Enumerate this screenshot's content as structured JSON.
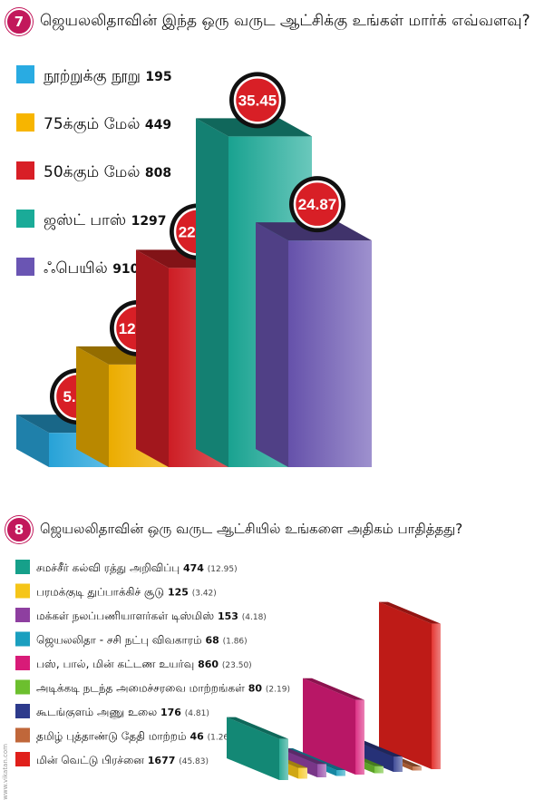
{
  "q1": {
    "number": "7",
    "question": "ஜெயலலிதாவின் இந்த ஒரு வருட ஆட்சிக்கு உங்கள் மார்க் எவ்வளவு?"
  },
  "q2": {
    "number": "8",
    "question": "ஜெயலலிதாவின் ஒரு வருட ஆட்சியில் உங்களை அதிகம் பாதித்தது?"
  },
  "watermark": "www.vikatan.com",
  "chart_data": [
    {
      "type": "bar",
      "title": "ஜெயலலிதாவின் இந்த ஒரு வருட ஆட்சிக்கு உங்கள் மார்க் எவ்வளவு?",
      "legend_position": "top-left",
      "grid": false,
      "series": [
        {
          "name": "நூற்றுக்கு நூறு",
          "count": "195",
          "value": 5.33,
          "label": "5.33",
          "color": "#29abe2"
        },
        {
          "name": "75க்கும் மேல்",
          "count": "449",
          "value": 12.27,
          "label": "12.27",
          "color": "#f7b500"
        },
        {
          "name": "50க்கும் மேல்",
          "count": "808",
          "value": 22.08,
          "label": "22.08",
          "color": "#d81f26"
        },
        {
          "name": "ஜஸ்ட் பாஸ்",
          "count": "1297",
          "value": 35.45,
          "label": "35.45",
          "color": "#1aab98"
        },
        {
          "name": "ஃபெயில்",
          "count": "910",
          "value": 24.87,
          "label": "24.87",
          "color": "#6a55b3"
        }
      ]
    },
    {
      "type": "bar",
      "title": "ஜெயலலிதாவின் ஒரு வருட ஆட்சியில் உங்களை அதிகம் பாதித்தது?",
      "legend_position": "left",
      "grid": false,
      "series": [
        {
          "name": "சமச்சீர் கல்வி ரத்து அறிவிப்பு",
          "count": "474",
          "pct": "(12.95)",
          "value": 12.95,
          "color": "#16a08a"
        },
        {
          "name": "பரமக்குடி துப்பாக்கிச் சூடு",
          "count": "125",
          "pct": "(3.42)",
          "value": 3.42,
          "color": "#f5c518"
        },
        {
          "name": "மக்கள் நலப்பணியாளர்கள் டிஸ்மிஸ்",
          "count": "153",
          "pct": "(4.18)",
          "value": 4.18,
          "color": "#8e3fa0"
        },
        {
          "name": "ஜெயலலிதா - சசி நட்பு விவகாரம்",
          "count": "68",
          "pct": "(1.86)",
          "value": 1.86,
          "color": "#1a9fbf"
        },
        {
          "name": "பஸ், பால், மின் கட்டண உயர்வு",
          "count": "860",
          "pct": "(23.50)",
          "value": 23.5,
          "color": "#d81b78"
        },
        {
          "name": "அடிக்கடி நடந்த அமைச்சரவை மாற்றங்கள்",
          "count": "80",
          "pct": "(2.19)",
          "value": 2.19,
          "color": "#6cbf2e"
        },
        {
          "name": "கூடங்குளம் அணு உலை",
          "count": "176",
          "pct": "(4.81)",
          "value": 4.81,
          "color": "#2d3a8c"
        },
        {
          "name": "தமிழ் புத்தாண்டு தேதி மாற்றம்",
          "count": "46",
          "pct": "(1.26)",
          "value": 1.26,
          "color": "#c0673a"
        },
        {
          "name": "மின் வெட்டு பிரச்னை",
          "count": "1677",
          "pct": "(45.83)",
          "value": 45.83,
          "color": "#e0201b"
        }
      ]
    }
  ]
}
